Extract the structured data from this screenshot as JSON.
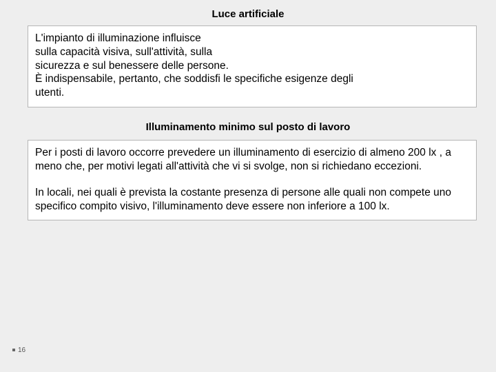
{
  "title1": "Luce artificiale",
  "box1": {
    "line1": "L'impianto di illuminazione influisce",
    "line2": "sulla capacità visiva, sull'attività, sulla",
    "line3": "sicurezza e sul benessere delle persone.",
    "line4": "È indispensabile, pertanto, che soddisfi le specifiche esigenze degli",
    "line5": "utenti."
  },
  "title2": "Illuminamento minimo sul posto di lavoro",
  "box2": {
    "p1": "Per i posti di lavoro occorre prevedere un illuminamento di esercizio di almeno  200 lx  , a meno che, per motivi legati all'attività che vi si svolge, non si richiedano eccezioni.",
    "p2": "In locali, nei quali è prevista la costante presenza di persone alle quali non compete uno specifico compito visivo, l'illuminamento deve essere non inferiore a 100 lx."
  },
  "pageNumber": "16"
}
